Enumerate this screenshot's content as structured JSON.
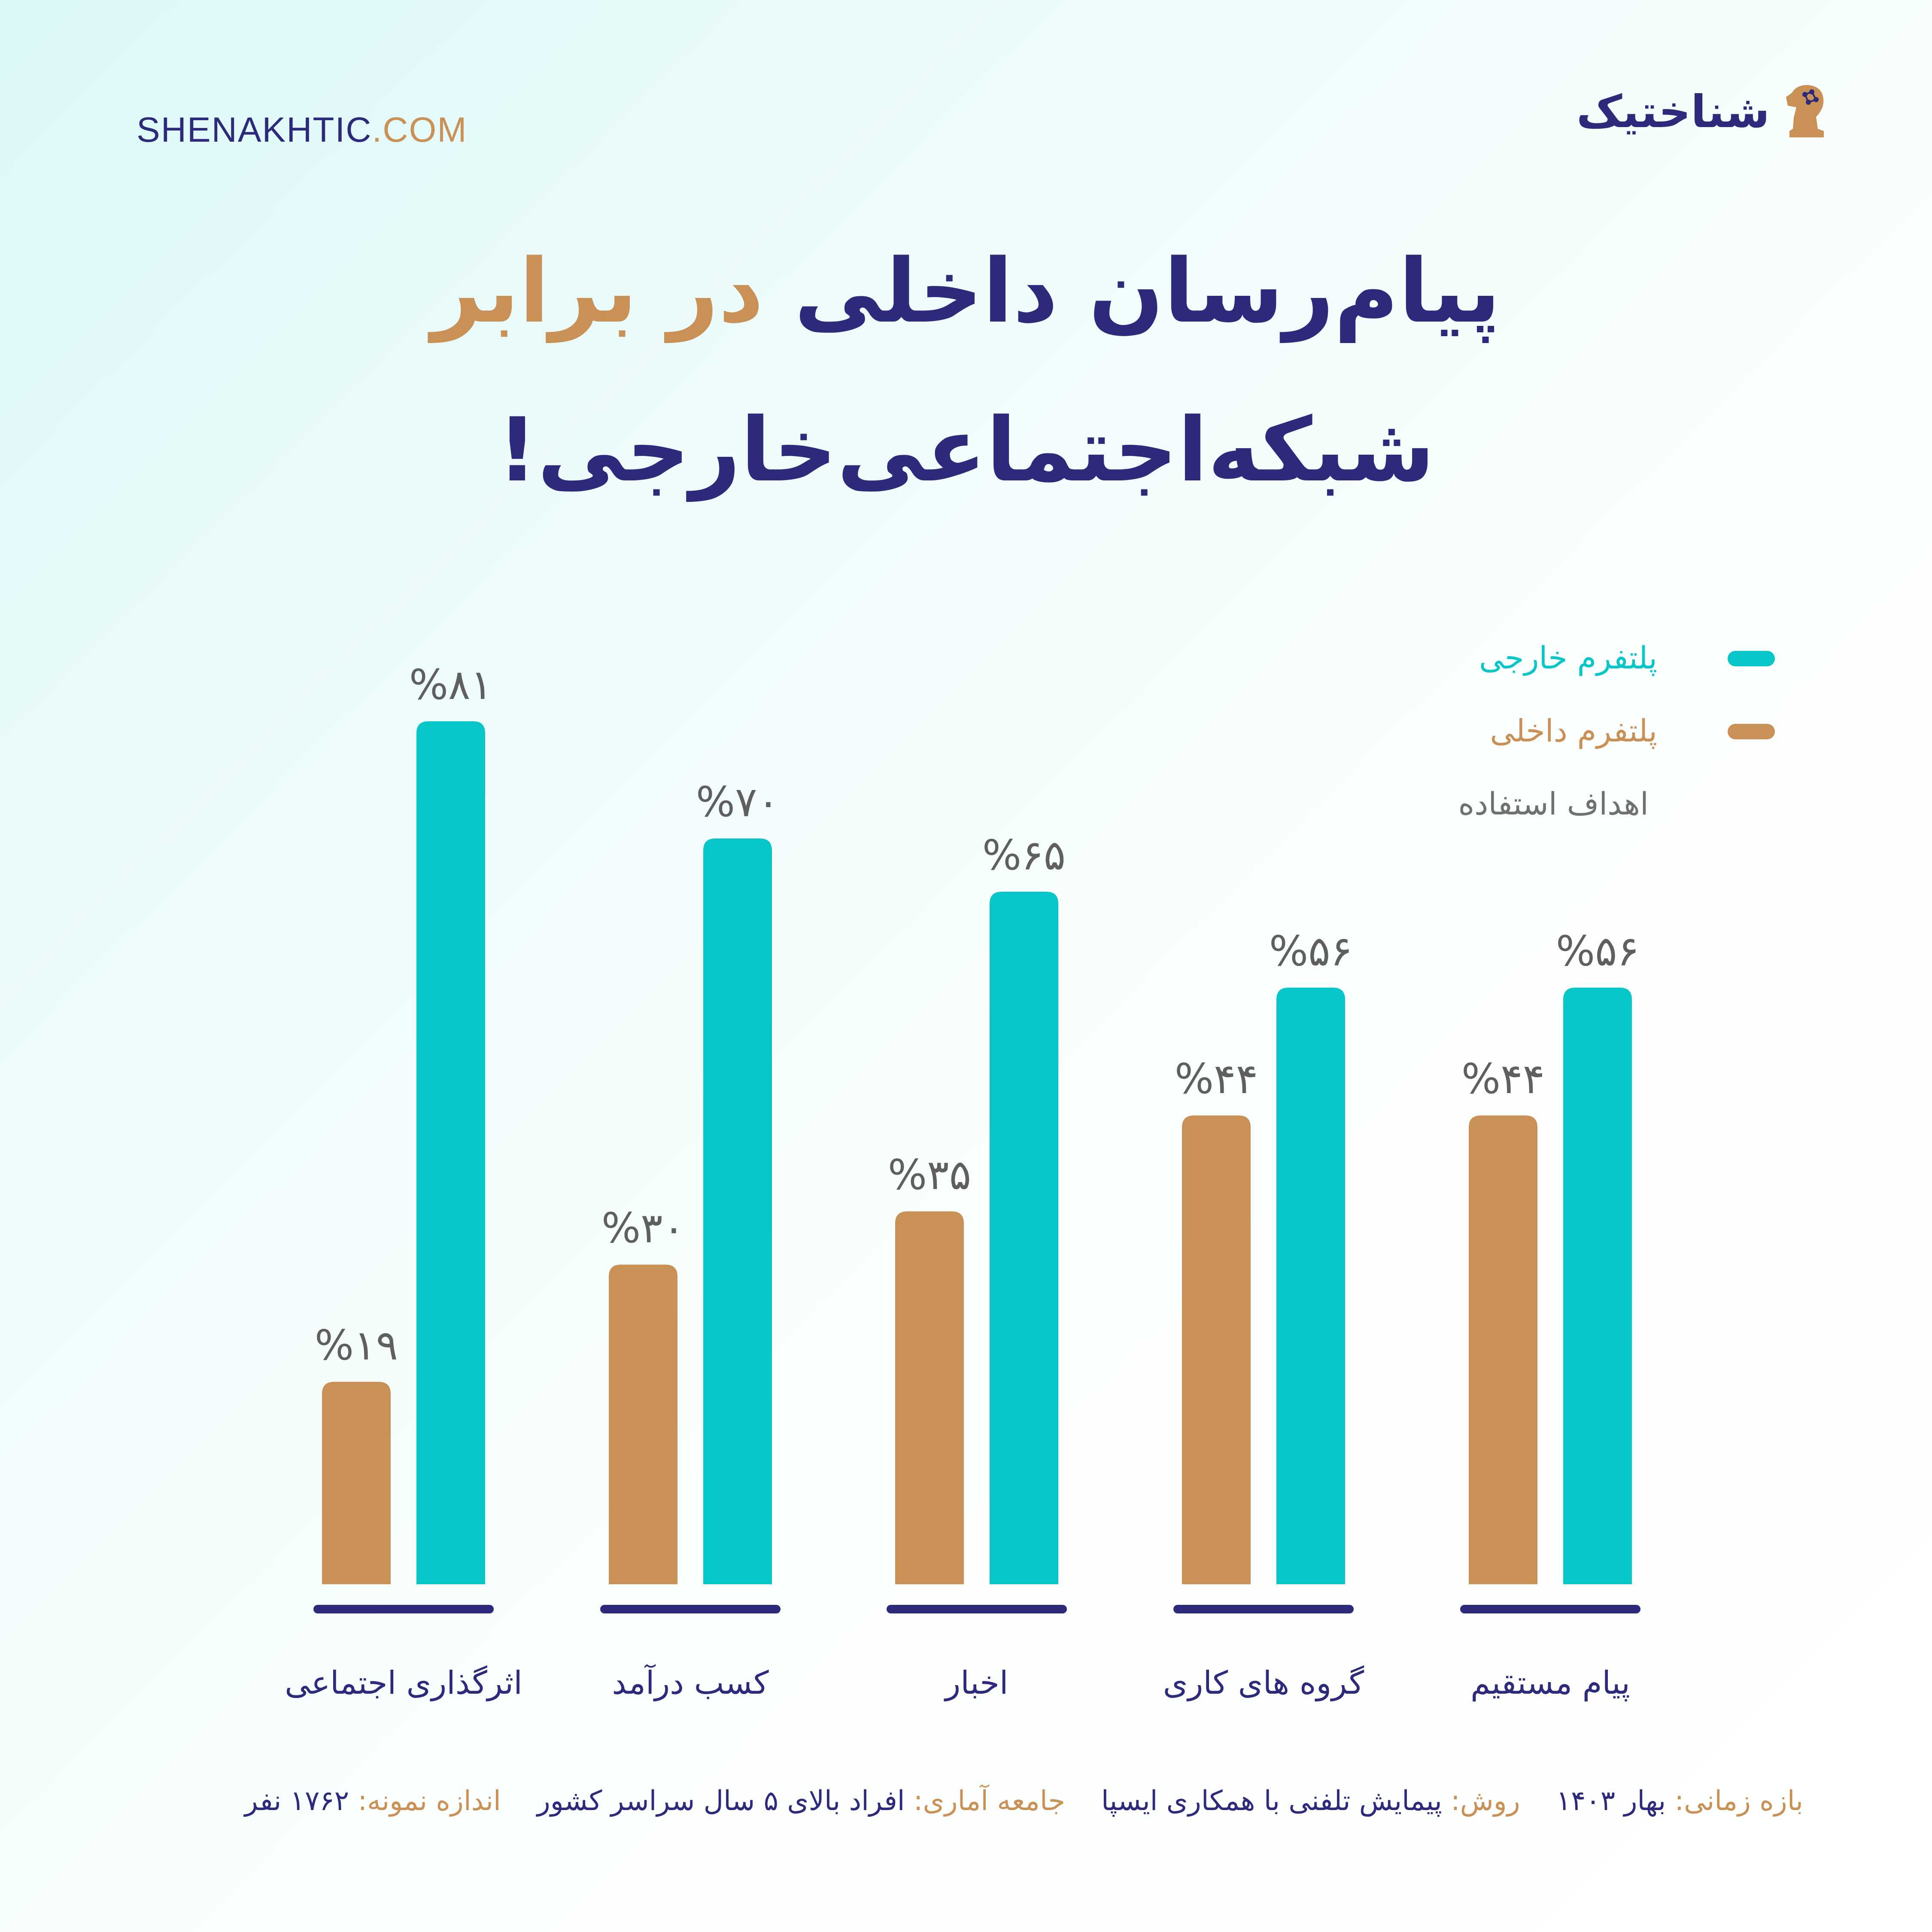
{
  "header": {
    "site_url_main": "SHENAKHTIC",
    "site_url_tld": ".COM",
    "brand_name": "شناختیک"
  },
  "title": {
    "line1_main": "پیام‌رسان داخلی",
    "line1_accent": "در برابر",
    "line2": "شبکه‌اجتماعی‌خارجی!"
  },
  "legend": {
    "caption": "اهداف استفاده"
  },
  "colors": {
    "foreign": "#06c6c8",
    "domestic": "#c99156",
    "navy": "#2d2a7c",
    "value_label": "#5f5f5f"
  },
  "chart_data": {
    "type": "bar",
    "categories": [
      "اثرگذاری اجتماعی",
      "کسب درآمد",
      "اخبار",
      "گروه های کاری",
      "پیام مستقیم"
    ],
    "series": [
      {
        "name": "پلتفرم داخلی",
        "values": [
          19,
          30,
          35,
          44,
          44
        ],
        "labels": [
          "%۱۹",
          "%۳۰",
          "%۳۵",
          "%۴۴",
          "%۴۴"
        ],
        "color": "#c99156"
      },
      {
        "name": "پلتفرم خارجی",
        "values": [
          81,
          70,
          65,
          56,
          56
        ],
        "labels": [
          "%۸۱",
          "%۷۰",
          "%۶۵",
          "%۵۶",
          "%۵۶"
        ],
        "color": "#06c6c8"
      }
    ],
    "ylim": [
      0,
      100
    ],
    "grid": false,
    "legend_position": "top-right"
  },
  "footer": {
    "period_key": "بازه زمانی:",
    "period_value": "بهار ۱۴۰۳",
    "method_key": "روش:",
    "method_value": "پیمایش تلفنی با همکاری ایسپا",
    "population_key": "جامعه آماری:",
    "population_value": "افراد بالای ۵ سال سراسر کشور",
    "sample_key": "اندازه نمونه:",
    "sample_value": "۱۷۶۲ نفر"
  }
}
